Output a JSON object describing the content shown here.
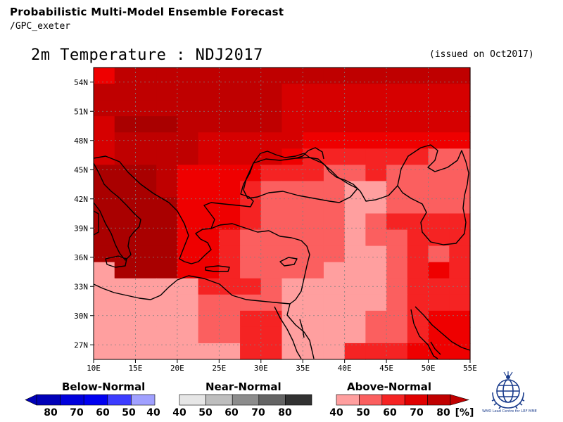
{
  "header": {
    "line1": "Probabilistic Multi-Model Ensemble Forecast",
    "line2": "/GPC_exeter"
  },
  "map": {
    "title": "2m Temperature : NDJ2017",
    "issued": "(issued on Oct2017)",
    "lat_labels": [
      "54N",
      "51N",
      "48N",
      "45N",
      "42N",
      "39N",
      "36N",
      "33N",
      "30N",
      "27N"
    ],
    "lon_labels": [
      "10E",
      "15E",
      "20E",
      "25E",
      "30E",
      "35E",
      "40E",
      "45E",
      "50E",
      "55E"
    ],
    "lat_range": [
      25.5,
      55.5
    ],
    "lon_range": [
      10,
      55
    ],
    "grid_step_deg": 2.5,
    "category_colors": {
      "A5": "#ff9f9f",
      "A4": "#fb5f5f",
      "A3": "#f52323",
      "A2": "#ef0000",
      "A1": "#d60000",
      "A0": "#bf0000",
      "A9": "#a90000",
      "N": "#dcdcdc",
      "W": "#ffffff"
    },
    "probability_rows": [
      "A2 A0 A0 A0 A0 A0 A0 A0 A0 A0 A0 A0 A0 A0 A0 A0 A0 A0",
      "A0 A0 A0 A0 A0 A0 A0 A0 A0 A1 A1 A1 A1 A1 A1 A1 A1 A1",
      "A0 A0 A0 A0 A0 A0 A0 A0 A0 A1 A1 A1 A1 A1 A1 A1 A1 A1",
      "A1 A9 A9 A9 A0 A0 A0 A0 A0 A1 A1 A1 A1 A1 A1 A1 A1 A1",
      "A1 A0 A0 A0 A0 A1 A1 A1 A1 A1 A2 A2 A2 A2 A2 A2 A2 A2",
      "A1 A0 A0 A0 A0 A1 A1 A1 A1 A2 A3 A3 A3 A3 A3 A3 A4 A4",
      "A9 A9 A9 A0 A2 A2 A2 A2 A3 A3 A3 A4 A4 A3 A4 A4 A4 A4",
      "A9 A9 A9 A0 A2 A2 A2 A3 A4 A4 A4 A4 A5 A5 A4 A4 A4 A4",
      "A9 A9 A9 A9 A2 A2 A2 A3 A4 A4 A4 A4 A5 A5 A4 A4 A4 A4",
      "A9 A9 A9 A9 A2 A2 A2 A3 A4 A4 A4 A4 A5 A4 A3 A3 A3 A3",
      "A9 A9 A9 A9 A2 A2 A3 A4 A4 A4 A4 A4 A5 A4 A4 A3 A3 A3",
      "A9 A9 A9 A9 A2 A2 A3 A4 A4 A4 A4 A4 A5 A5 A4 A3 A4 A3",
      "A5 A9 A9 A9 A2 A2 A3 A4 A4 A4 A4 A5 A5 A5 A4 A3 A2 A3",
      "A5 A5 A5 A5 A5 A3 A3 A3 A4 A5 A5 A5 A5 A5 A4 A3 A3 A3",
      "A5 A5 A5 A5 A5 A4 A4 A4 A4 A5 A5 A5 A5 A5 A4 A3 A3 A3",
      "A5 A5 A5 A5 A5 A4 A4 A3 A3 A5 A5 A5 A5 A4 A4 A3 A2 A2",
      "A5 A5 A5 A5 A5 A4 A4 A3 A3 A5 A5 A5 A5 A4 A4 A3 A2 A2",
      "A5 A5 A5 A5 A5 A5 A5 A3 A3 A5 A5 A5 A3 A3 A3 A2 A2 A2"
    ]
  },
  "legend": {
    "unit": "[%]",
    "groups": [
      {
        "title": "Below-Normal",
        "labels": [
          "80",
          "70",
          "60",
          "50",
          "40"
        ],
        "colors": [
          "#0000b8",
          "#0000dc",
          "#0000f0",
          "#3c3cff",
          "#a0a0ff"
        ]
      },
      {
        "title": "Near-Normal",
        "labels": [
          "40",
          "50",
          "60",
          "70",
          "80"
        ],
        "colors": [
          "#e6e6e6",
          "#bebebe",
          "#8c8c8c",
          "#646464",
          "#323232"
        ]
      },
      {
        "title": "Above-Normal",
        "labels": [
          "40",
          "50",
          "60",
          "70",
          "80"
        ],
        "colors": [
          "#ff9f9f",
          "#fb5f5f",
          "#f52323",
          "#e00000",
          "#c00000"
        ]
      }
    ]
  },
  "logo": {
    "caption": "WMO Lead Centre for LRF MME",
    "color": "#1a3c8c"
  }
}
